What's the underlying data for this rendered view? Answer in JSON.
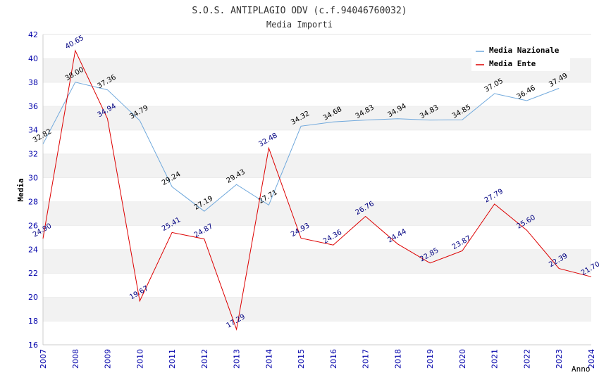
{
  "chart_data": {
    "type": "line",
    "title": "S.O.S. ANTIPLAGIO ODV (c.f.94046760032)",
    "subtitle": "Media Importi",
    "xlabel": "Anno",
    "ylabel": "Media",
    "ylim": [
      16,
      42
    ],
    "yticks": [
      16,
      18,
      20,
      22,
      24,
      26,
      28,
      30,
      32,
      34,
      36,
      38,
      40,
      42
    ],
    "categories": [
      "2007",
      "2008",
      "2009",
      "2010",
      "2011",
      "2012",
      "2013",
      "2014",
      "2015",
      "2016",
      "2017",
      "2018",
      "2019",
      "2020",
      "2021",
      "2022",
      "2023",
      "2024"
    ],
    "legend_position": "top-right",
    "grid": true,
    "series": [
      {
        "name": "Media Nazionale",
        "color": "#6fa8dc",
        "label_color": "#000000",
        "values": [
          32.82,
          38.0,
          37.36,
          34.79,
          29.24,
          27.19,
          29.43,
          27.71,
          34.32,
          34.68,
          34.83,
          34.94,
          34.83,
          34.85,
          37.05,
          36.46,
          37.49,
          null
        ],
        "labels": [
          "32.82",
          "38.00",
          "37.36",
          "34.79",
          "29.24",
          "27.19",
          "29.43",
          "27.71",
          "34.32",
          "34.68",
          "34.83",
          "34.94",
          "34.83",
          "34.85",
          "37.05",
          "36.46",
          "37.49",
          ""
        ]
      },
      {
        "name": "Media Ente",
        "color": "#dd0000",
        "label_color": "#000080",
        "values": [
          24.9,
          40.65,
          34.94,
          19.67,
          25.41,
          24.87,
          17.29,
          32.48,
          24.93,
          24.36,
          26.76,
          24.44,
          22.85,
          23.87,
          27.79,
          25.6,
          22.39,
          21.7
        ],
        "labels": [
          "24.90",
          "40.65",
          "34.94",
          "19.67",
          "25.41",
          "24.87",
          "17.29",
          "32.48",
          "24.93",
          "24.36",
          "26.76",
          "24.44",
          "22.85",
          "23.87",
          "27.79",
          "25.60",
          "22.39",
          "21.70"
        ]
      }
    ]
  }
}
